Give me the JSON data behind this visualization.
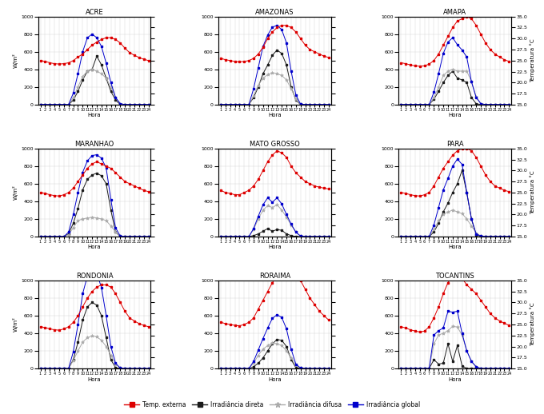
{
  "states": [
    "ACRE",
    "AMAZONAS",
    "AMAPA",
    "MARANHAO",
    "MATO GROSSO",
    "PARA",
    "RONDONIA",
    "RORAIMA",
    "TOCANTINS"
  ],
  "state_labels": [
    "ACRE",
    "AMAZONAS",
    "AMAPA",
    "MARANHAO",
    "MATO GROSSO",
    "PARA",
    "RONDONIA",
    "RORAIMA",
    "TOCANTINS"
  ],
  "hours": [
    1,
    2,
    3,
    4,
    5,
    6,
    7,
    8,
    9,
    10,
    11,
    12,
    13,
    14,
    15,
    16,
    17,
    18,
    19,
    20,
    21,
    22,
    23,
    24
  ],
  "temp_ext": {
    "ACRE": [
      25.0,
      24.8,
      24.5,
      24.3,
      24.2,
      24.3,
      24.5,
      25.0,
      25.8,
      26.5,
      27.5,
      28.5,
      29.2,
      29.8,
      30.2,
      30.2,
      29.8,
      29.0,
      27.8,
      26.8,
      26.2,
      25.7,
      25.3,
      25.0
    ],
    "AMAZONAS": [
      25.5,
      25.2,
      25.0,
      24.8,
      24.7,
      24.8,
      25.0,
      25.5,
      26.5,
      28.0,
      30.0,
      31.5,
      32.5,
      33.0,
      33.0,
      32.5,
      31.5,
      30.0,
      28.5,
      27.5,
      27.0,
      26.5,
      26.0,
      25.7
    ],
    "AMAPA": [
      24.5,
      24.3,
      24.0,
      23.8,
      23.7,
      23.8,
      24.2,
      25.0,
      26.5,
      28.5,
      30.5,
      32.5,
      34.0,
      34.5,
      35.0,
      34.5,
      33.0,
      31.0,
      29.0,
      27.5,
      26.5,
      25.8,
      25.2,
      24.8
    ],
    "MARANHAO": [
      25.0,
      24.8,
      24.5,
      24.3,
      24.2,
      24.5,
      25.0,
      26.0,
      27.5,
      29.0,
      30.5,
      31.5,
      32.0,
      31.5,
      31.0,
      30.5,
      29.5,
      28.5,
      27.5,
      27.0,
      26.5,
      26.0,
      25.5,
      25.2
    ],
    "MATO GROSSO": [
      25.5,
      25.0,
      24.8,
      24.5,
      24.5,
      25.0,
      25.5,
      26.5,
      28.0,
      30.0,
      32.0,
      33.5,
      34.5,
      34.0,
      33.0,
      31.0,
      29.5,
      28.5,
      27.5,
      27.0,
      26.5,
      26.2,
      26.0,
      25.8
    ],
    "PARA": [
      25.0,
      24.8,
      24.5,
      24.3,
      24.2,
      24.5,
      25.0,
      26.5,
      28.5,
      30.5,
      32.0,
      33.5,
      34.5,
      35.0,
      35.0,
      34.5,
      33.0,
      31.0,
      29.0,
      27.5,
      26.5,
      26.0,
      25.5,
      25.2
    ],
    "RONDONIA": [
      24.5,
      24.3,
      24.0,
      23.8,
      23.7,
      24.0,
      24.5,
      25.5,
      27.0,
      29.0,
      31.0,
      32.5,
      33.5,
      34.0,
      34.0,
      33.5,
      32.0,
      30.0,
      28.0,
      26.5,
      25.8,
      25.2,
      24.8,
      24.5
    ],
    "RORAIMA": [
      25.5,
      25.2,
      25.0,
      24.8,
      24.7,
      25.0,
      25.5,
      26.5,
      28.5,
      30.5,
      32.5,
      34.5,
      36.0,
      37.0,
      37.5,
      37.5,
      36.5,
      35.0,
      33.0,
      31.0,
      29.5,
      28.0,
      27.0,
      26.0
    ],
    "TOCANTINS": [
      24.5,
      24.2,
      23.8,
      23.5,
      23.3,
      23.5,
      24.5,
      26.5,
      29.0,
      32.0,
      34.5,
      36.0,
      36.5,
      35.5,
      34.0,
      33.0,
      32.0,
      30.5,
      29.0,
      27.5,
      26.5,
      25.8,
      25.3,
      24.8
    ]
  },
  "irr_direta": {
    "ACRE": [
      0,
      0,
      0,
      0,
      0,
      0,
      0,
      50,
      150,
      280,
      380,
      400,
      550,
      450,
      300,
      150,
      50,
      0,
      0,
      0,
      0,
      0,
      0,
      0
    ],
    "AMAZONAS": [
      0,
      0,
      0,
      0,
      0,
      0,
      0,
      80,
      200,
      350,
      450,
      560,
      620,
      580,
      450,
      200,
      50,
      0,
      0,
      0,
      0,
      0,
      0,
      0
    ],
    "AMAPA": [
      0,
      0,
      0,
      0,
      0,
      0,
      0,
      60,
      150,
      250,
      330,
      380,
      300,
      280,
      250,
      80,
      10,
      0,
      0,
      0,
      0,
      0,
      0,
      0
    ],
    "MARANHAO": [
      0,
      0,
      0,
      0,
      0,
      0,
      30,
      150,
      320,
      530,
      650,
      700,
      720,
      690,
      600,
      300,
      50,
      0,
      0,
      0,
      0,
      0,
      0,
      0
    ],
    "MATO GROSSO": [
      0,
      0,
      0,
      0,
      0,
      0,
      0,
      10,
      30,
      60,
      90,
      60,
      80,
      70,
      30,
      10,
      0,
      0,
      0,
      0,
      0,
      0,
      0,
      0
    ],
    "PARA": [
      0,
      0,
      0,
      0,
      0,
      0,
      0,
      50,
      150,
      280,
      380,
      500,
      600,
      750,
      500,
      200,
      20,
      0,
      0,
      0,
      0,
      0,
      0,
      0
    ],
    "RONDONIA": [
      0,
      0,
      0,
      0,
      0,
      0,
      0,
      100,
      300,
      550,
      700,
      750,
      720,
      600,
      350,
      100,
      10,
      0,
      0,
      0,
      0,
      0,
      0,
      0
    ],
    "RORAIMA": [
      0,
      0,
      0,
      0,
      0,
      0,
      0,
      20,
      60,
      120,
      200,
      280,
      330,
      320,
      250,
      100,
      10,
      0,
      0,
      0,
      0,
      0,
      0,
      0
    ],
    "TOCANTINS": [
      0,
      0,
      0,
      0,
      0,
      0,
      0,
      100,
      50,
      60,
      280,
      80,
      260,
      30,
      0,
      0,
      0,
      0,
      0,
      0,
      0,
      0,
      0,
      0
    ]
  },
  "irr_difusa": {
    "ACRE": [
      0,
      0,
      0,
      0,
      0,
      0,
      0,
      80,
      200,
      320,
      380,
      400,
      380,
      350,
      300,
      200,
      80,
      10,
      0,
      0,
      0,
      0,
      0,
      0
    ],
    "AMAZONAS": [
      0,
      0,
      0,
      0,
      0,
      0,
      0,
      100,
      220,
      300,
      340,
      360,
      350,
      330,
      280,
      180,
      60,
      5,
      0,
      0,
      0,
      0,
      0,
      0
    ],
    "AMAPA": [
      0,
      0,
      0,
      0,
      0,
      0,
      0,
      80,
      200,
      330,
      380,
      400,
      380,
      380,
      380,
      260,
      90,
      10,
      0,
      0,
      0,
      0,
      0,
      0
    ],
    "MARANHAO": [
      0,
      0,
      0,
      0,
      0,
      0,
      20,
      100,
      180,
      200,
      210,
      220,
      210,
      200,
      180,
      120,
      50,
      5,
      0,
      0,
      0,
      0,
      0,
      0
    ],
    "MATO GROSSO": [
      0,
      0,
      0,
      0,
      0,
      0,
      0,
      80,
      200,
      300,
      350,
      330,
      360,
      300,
      220,
      130,
      50,
      5,
      0,
      0,
      0,
      0,
      0,
      0
    ],
    "PARA": [
      0,
      0,
      0,
      0,
      0,
      0,
      0,
      80,
      180,
      250,
      280,
      300,
      280,
      260,
      200,
      120,
      40,
      5,
      0,
      0,
      0,
      0,
      0,
      0
    ],
    "RONDONIA": [
      0,
      0,
      0,
      0,
      0,
      0,
      0,
      90,
      200,
      300,
      350,
      370,
      360,
      320,
      250,
      150,
      50,
      5,
      0,
      0,
      0,
      0,
      0,
      0
    ],
    "RORAIMA": [
      0,
      0,
      0,
      0,
      0,
      0,
      0,
      60,
      150,
      220,
      260,
      290,
      280,
      260,
      200,
      120,
      40,
      5,
      0,
      0,
      0,
      0,
      0,
      0
    ],
    "TOCANTINS": [
      0,
      0,
      0,
      0,
      0,
      0,
      0,
      280,
      380,
      400,
      430,
      480,
      470,
      380,
      200,
      80,
      20,
      0,
      0,
      0,
      0,
      0,
      0,
      0
    ]
  },
  "irr_global": {
    "ACRE": [
      0,
      0,
      0,
      0,
      0,
      0,
      0,
      130,
      350,
      600,
      760,
      800,
      760,
      660,
      470,
      250,
      80,
      10,
      0,
      0,
      0,
      0,
      0,
      0
    ],
    "AMAZONAS": [
      0,
      0,
      0,
      0,
      0,
      0,
      0,
      180,
      420,
      660,
      790,
      880,
      900,
      850,
      700,
      380,
      110,
      5,
      0,
      0,
      0,
      0,
      0,
      0
    ],
    "AMAPA": [
      0,
      0,
      0,
      0,
      0,
      0,
      0,
      140,
      350,
      580,
      710,
      760,
      680,
      620,
      540,
      260,
      80,
      10,
      0,
      0,
      0,
      0,
      0,
      0
    ],
    "MARANHAO": [
      0,
      0,
      0,
      0,
      0,
      0,
      50,
      250,
      500,
      730,
      860,
      920,
      930,
      890,
      780,
      420,
      100,
      5,
      0,
      0,
      0,
      0,
      0,
      0
    ],
    "MATO GROSSO": [
      0,
      0,
      0,
      0,
      0,
      0,
      0,
      90,
      230,
      360,
      440,
      390,
      440,
      370,
      250,
      140,
      50,
      5,
      0,
      0,
      0,
      0,
      0,
      0
    ],
    "PARA": [
      0,
      0,
      0,
      0,
      0,
      0,
      0,
      130,
      330,
      530,
      660,
      800,
      880,
      820,
      500,
      200,
      30,
      5,
      0,
      0,
      0,
      0,
      0,
      0
    ],
    "RONDONIA": [
      0,
      0,
      0,
      0,
      0,
      0,
      0,
      190,
      500,
      850,
      1050,
      1120,
      1080,
      920,
      600,
      250,
      60,
      5,
      0,
      0,
      0,
      0,
      0,
      0
    ],
    "RORAIMA": [
      0,
      0,
      0,
      0,
      0,
      0,
      0,
      80,
      210,
      340,
      460,
      570,
      610,
      580,
      450,
      220,
      50,
      5,
      0,
      0,
      0,
      0,
      0,
      0
    ],
    "TOCANTINS": [
      0,
      0,
      0,
      0,
      0,
      0,
      0,
      380,
      430,
      460,
      650,
      640,
      650,
      400,
      200,
      80,
      20,
      0,
      0,
      0,
      0,
      0,
      0,
      0
    ]
  },
  "color_temp": "#dd0000",
  "color_direta": "#1a1a1a",
  "color_difusa": "#aaaaaa",
  "color_global": "#0000cc",
  "ylim_irr": [
    0,
    1000
  ],
  "ylim_temp": [
    15,
    35
  ],
  "xlabel": "Hora",
  "ylabel_left": "W/m²",
  "ylabel_right": "Temperatura °C",
  "legend_labels": [
    "Temp. externa",
    "Irradiância direta",
    "Irradiância difusa",
    "Irradiância global"
  ]
}
